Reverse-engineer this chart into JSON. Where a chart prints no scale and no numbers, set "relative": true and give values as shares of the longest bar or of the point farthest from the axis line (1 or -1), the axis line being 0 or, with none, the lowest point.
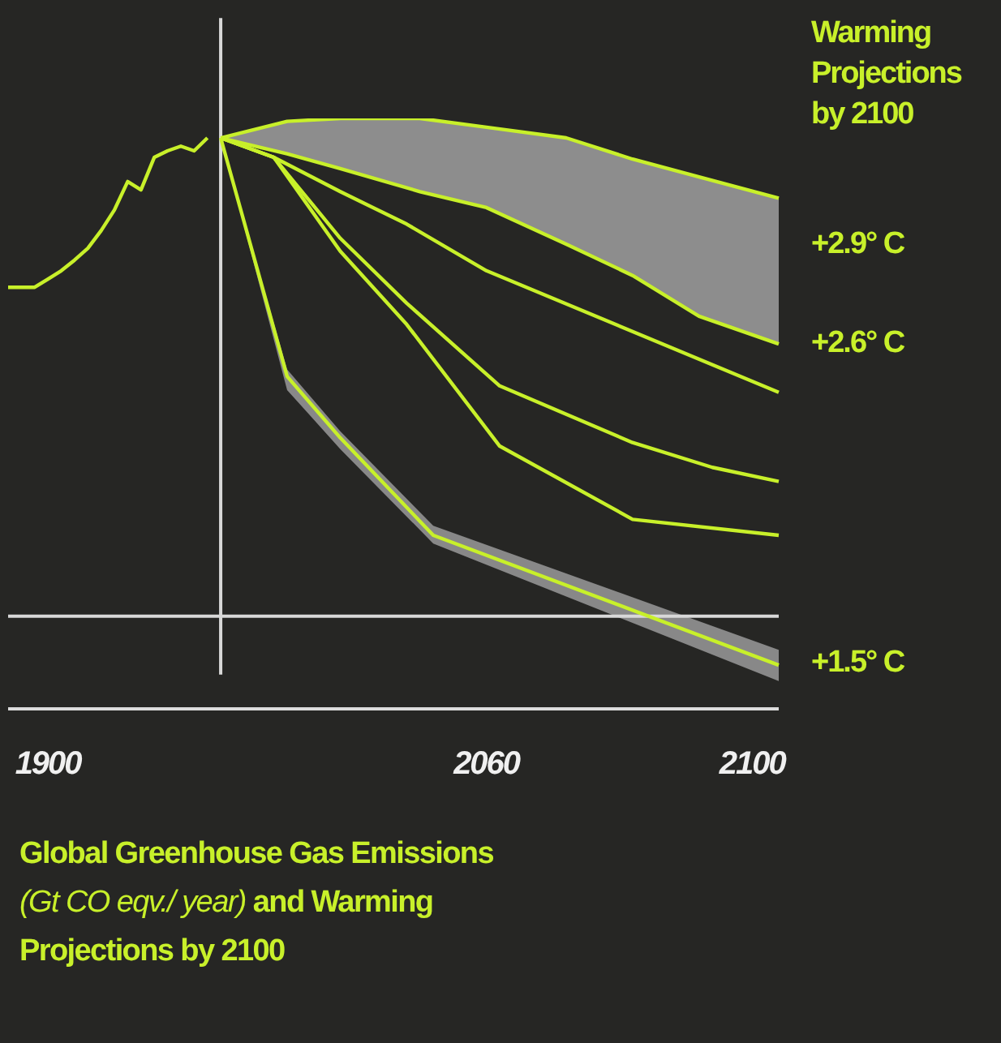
{
  "chart_data": {
    "type": "line",
    "title": "Global Greenhouse Gas Emissions (Gt CO eqv./ year) and Warming Projections by 2100",
    "relative": true,
    "categories": [
      null,
      null,
      null,
      "1900",
      null,
      null,
      null,
      null,
      null,
      null,
      null,
      null,
      null,
      null,
      null,
      null,
      null,
      null,
      null,
      null,
      null,
      null,
      null,
      null,
      null,
      null,
      null,
      null,
      null,
      null,
      null,
      null,
      null,
      null,
      null,
      null,
      "2060",
      null,
      null,
      null,
      null,
      null,
      null,
      null,
      null,
      null,
      null,
      null,
      null,
      null,
      null,
      null,
      null,
      null,
      null,
      null,
      "2100",
      null,
      null
    ],
    "series": [
      {
        "color": "#c8f02a",
        "values": [
          0.714,
          0.714,
          0.714,
          0.728,
          0.742,
          0.76,
          0.78,
          0.81,
          0.845,
          0.893,
          0.879,
          0.934,
          0.945,
          0.953,
          0.945,
          0.967,
          null,
          null,
          null,
          null,
          null,
          null,
          null,
          null,
          null,
          null,
          null,
          null,
          null,
          null,
          null,
          null,
          null,
          null,
          null,
          null,
          null,
          null,
          null,
          null,
          null,
          null,
          null,
          null,
          null,
          null,
          null,
          null,
          null,
          null,
          null,
          null,
          null,
          null,
          null,
          null,
          null,
          null,
          null
        ]
      },
      {
        "color": "#c8f02a",
        "values": [
          null,
          null,
          null,
          null,
          null,
          null,
          null,
          null,
          null,
          null,
          null,
          null,
          null,
          null,
          null,
          null,
          0.967,
          null,
          null,
          null,
          null,
          0.995,
          null,
          null,
          null,
          1,
          null,
          null,
          null,
          null,
          null,
          1,
          null,
          null,
          null,
          null,
          0.985,
          null,
          null,
          null,
          null,
          null,
          0.967,
          null,
          null,
          null,
          null,
          0.931,
          null,
          null,
          null,
          null,
          0.901,
          null,
          null,
          null,
          null,
          null,
          0.865
        ],
        "lower": [
          null,
          null,
          null,
          null,
          null,
          null,
          null,
          null,
          null,
          null,
          null,
          null,
          null,
          null,
          null,
          null,
          0.967,
          null,
          null,
          null,
          null,
          0.94,
          null,
          null,
          null,
          0.915,
          null,
          null,
          null,
          null,
          null,
          0.876,
          null,
          null,
          null,
          null,
          0.849,
          null,
          null,
          null,
          null,
          null,
          0.787,
          null,
          null,
          null,
          null,
          0.734,
          null,
          null,
          null,
          null,
          0.665,
          null,
          null,
          null,
          null,
          null,
          0.618
        ],
        "upper": [
          null,
          null,
          null,
          null,
          null,
          null,
          null,
          null,
          null,
          null,
          null,
          null,
          null,
          null,
          null,
          null,
          0.967,
          null,
          null,
          null,
          null,
          0.995,
          null,
          null,
          null,
          1,
          null,
          null,
          null,
          null,
          null,
          1,
          null,
          null,
          null,
          null,
          0.985,
          null,
          null,
          null,
          null,
          null,
          0.967,
          null,
          null,
          null,
          null,
          0.931,
          null,
          null,
          null,
          null,
          0.901,
          null,
          null,
          null,
          null,
          null,
          0.865
        ]
      },
      {
        "color": "#c8f02a",
        "values": [
          null,
          null,
          null,
          null,
          null,
          null,
          null,
          null,
          null,
          null,
          null,
          null,
          null,
          null,
          null,
          null,
          0.967,
          null,
          null,
          null,
          null,
          0.94,
          null,
          null,
          null,
          0.915,
          null,
          null,
          null,
          null,
          null,
          0.876,
          null,
          null,
          null,
          null,
          0.849,
          null,
          null,
          null,
          null,
          null,
          0.787,
          null,
          null,
          null,
          null,
          0.734,
          null,
          null,
          null,
          null,
          0.665,
          null,
          null,
          null,
          null,
          null,
          0.618
        ]
      },
      {
        "color": "#c8f02a",
        "values": [
          null,
          null,
          null,
          null,
          null,
          null,
          null,
          null,
          null,
          null,
          null,
          null,
          null,
          null,
          null,
          null,
          0.967,
          null,
          null,
          null,
          0.934,
          null,
          null,
          null,
          null,
          0.876,
          null,
          null,
          null,
          null,
          0.821,
          null,
          null,
          null,
          null,
          null,
          0.742,
          null,
          null,
          null,
          null,
          null,
          null,
          null,
          null,
          null,
          null,
          null,
          null,
          null,
          null,
          null,
          null,
          null,
          null,
          null,
          null,
          null,
          0.536
        ]
      },
      {
        "color": "#c8f02a",
        "values": [
          null,
          null,
          null,
          null,
          null,
          null,
          null,
          null,
          null,
          null,
          null,
          null,
          null,
          null,
          null,
          null,
          0.967,
          null,
          null,
          null,
          0.934,
          null,
          null,
          null,
          null,
          0.797,
          null,
          null,
          null,
          null,
          0.687,
          null,
          null,
          null,
          null,
          null,
          null,
          0.547,
          null,
          null,
          null,
          null,
          null,
          null,
          null,
          null,
          null,
          0.451,
          null,
          null,
          null,
          null,
          null,
          0.409,
          null,
          null,
          null,
          null,
          0.385
        ]
      },
      {
        "color": "#c8f02a",
        "values": [
          null,
          null,
          null,
          null,
          null,
          null,
          null,
          null,
          null,
          null,
          null,
          null,
          null,
          null,
          null,
          null,
          0.967,
          null,
          null,
          null,
          0.934,
          null,
          null,
          null,
          null,
          0.775,
          null,
          null,
          null,
          null,
          0.651,
          null,
          null,
          null,
          null,
          null,
          null,
          0.445,
          null,
          null,
          null,
          null,
          null,
          null,
          null,
          null,
          null,
          0.321,
          null,
          null,
          null,
          null,
          null,
          null,
          null,
          null,
          null,
          null,
          0.294
        ]
      },
      {
        "color": "#c8f02a",
        "values": [
          null,
          null,
          null,
          null,
          null,
          null,
          null,
          null,
          null,
          null,
          null,
          null,
          null,
          null,
          null,
          null,
          0.967,
          null,
          null,
          null,
          null,
          0.563,
          null,
          null,
          null,
          0.459,
          null,
          null,
          null,
          null,
          null,
          null,
          0.294,
          null,
          null,
          null,
          null,
          null,
          null,
          null,
          null,
          null,
          null,
          null,
          null,
          null,
          null,
          null,
          null,
          null,
          null,
          null,
          null,
          null,
          null,
          null,
          null,
          null,
          0.074
        ],
        "lower": [
          null,
          null,
          null,
          null,
          null,
          null,
          null,
          null,
          null,
          null,
          null,
          null,
          null,
          null,
          null,
          null,
          0.967,
          null,
          null,
          null,
          null,
          0.54,
          null,
          null,
          null,
          0.44,
          null,
          null,
          null,
          null,
          null,
          null,
          0.28,
          null,
          null,
          null,
          null,
          null,
          null,
          null,
          null,
          null,
          null,
          null,
          null,
          null,
          null,
          null,
          null,
          null,
          null,
          null,
          null,
          null,
          null,
          null,
          null,
          null,
          0.047
        ],
        "upper": [
          null,
          null,
          null,
          null,
          null,
          null,
          null,
          null,
          null,
          null,
          null,
          null,
          null,
          null,
          null,
          null,
          0.967,
          null,
          null,
          null,
          null,
          0.575,
          null,
          null,
          null,
          0.47,
          null,
          null,
          null,
          null,
          null,
          null,
          0.31,
          null,
          null,
          null,
          null,
          null,
          null,
          null,
          null,
          null,
          null,
          null,
          null,
          null,
          null,
          null,
          null,
          null,
          null,
          null,
          null,
          null,
          null,
          null,
          null,
          null,
          0.1
        ]
      }
    ],
    "ref_lines": [
      {
        "axis": "y",
        "value": 0.157,
        "color": "#d8d8d8"
      }
    ],
    "annotations": [
      "Warming Projections by 2100",
      "+2.9° C",
      "+2.6° C",
      "+1.5° C"
    ]
  }
}
